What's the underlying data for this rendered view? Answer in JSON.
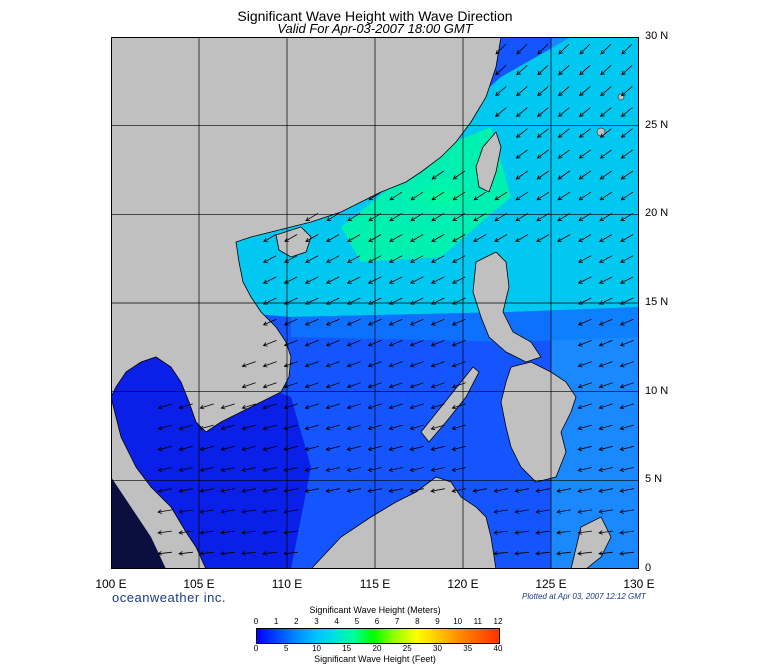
{
  "title": "Significant Wave Height with Wave Direction",
  "subtitle": "Valid For Apr-03-2007 18:00 GMT",
  "lat_labels": [
    "30 N",
    "25 N",
    "20 N",
    "15 N",
    "10 N",
    "5 N",
    "0"
  ],
  "lon_labels": [
    "100 E",
    "105 E",
    "110 E",
    "115 E",
    "120 E",
    "125 E",
    "130 E"
  ],
  "brand": "oceanweather inc.",
  "plotted": "Plotted at Apr 03, 2007 12:12 GMT",
  "colorbar": {
    "meters_title": "Significant Wave Height (Meters)",
    "meters_ticks": [
      "0",
      "1",
      "2",
      "3",
      "4",
      "5",
      "6",
      "7",
      "8",
      "9",
      "10",
      "11",
      "12"
    ],
    "feet_title": "Significant Wave Height (Feet)",
    "feet_ticks": [
      "0",
      "5",
      "10",
      "15",
      "20",
      "25",
      "30",
      "35",
      "40"
    ]
  },
  "colors": {
    "land": "#c0c0c0",
    "low_wave": "#0022ff",
    "mid_wave": "#00aaff",
    "high_wave": "#00ff88"
  }
}
